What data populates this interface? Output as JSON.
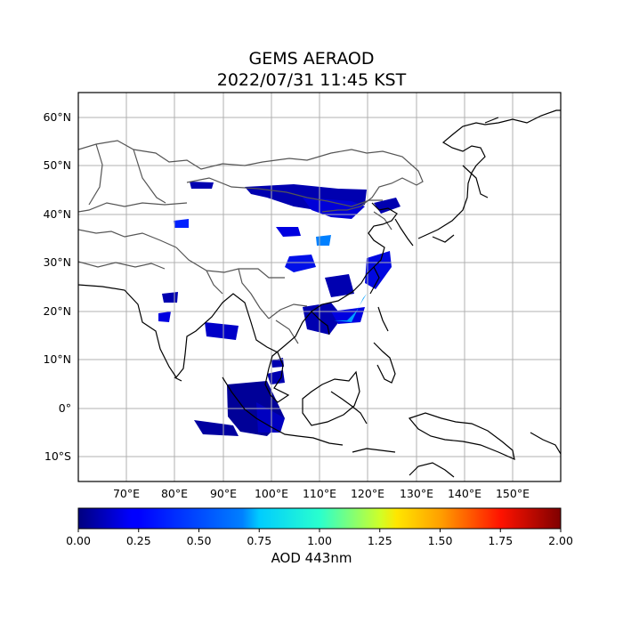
{
  "title_line1": "GEMS AERAOD",
  "title_line2": "2022/07/31 11:45 KST",
  "map": {
    "lon_range": [
      60,
      160
    ],
    "lat_range": [
      -15,
      65
    ],
    "lon_ticks": [
      {
        "value": 70,
        "label": "70°E"
      },
      {
        "value": 80,
        "label": "80°E"
      },
      {
        "value": 90,
        "label": "90°E"
      },
      {
        "value": 100,
        "label": "100°E"
      },
      {
        "value": 110,
        "label": "110°E"
      },
      {
        "value": 120,
        "label": "120°E"
      },
      {
        "value": 130,
        "label": "130°E"
      },
      {
        "value": 140,
        "label": "140°E"
      },
      {
        "value": 150,
        "label": "150°E"
      }
    ],
    "lat_ticks": [
      {
        "value": 60,
        "label": "60°N"
      },
      {
        "value": 50,
        "label": "50°N"
      },
      {
        "value": 40,
        "label": "40°N"
      },
      {
        "value": 30,
        "label": "30°N"
      },
      {
        "value": 20,
        "label": "20°N"
      },
      {
        "value": 10,
        "label": "10°N"
      },
      {
        "value": 0,
        "label": "0°"
      },
      {
        "value": -10,
        "label": "10°S"
      }
    ],
    "grid": true
  },
  "colorbar": {
    "label": "AOD 443nm",
    "range": [
      0,
      2
    ],
    "colormap": "jet",
    "ticks": [
      "0.00",
      "0.25",
      "0.50",
      "0.75",
      "1.00",
      "1.25",
      "1.50",
      "1.75",
      "2.00"
    ]
  }
}
